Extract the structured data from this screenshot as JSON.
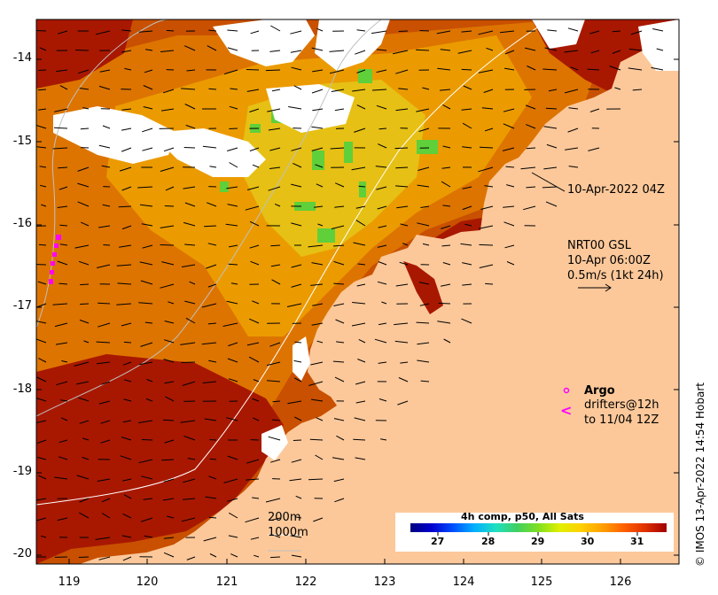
{
  "map": {
    "y_ticks": [
      "-14",
      "-15",
      "-16",
      "-17",
      "-18",
      "-19",
      "-20"
    ],
    "x_ticks": [
      "119",
      "120",
      "121",
      "122",
      "123",
      "124",
      "125",
      "126"
    ],
    "colors": {
      "ocean_hot": "#a81800",
      "ocean_warm": "#d65a00",
      "ocean_mid": "#eea000",
      "ocean_cool": "#e7d21e",
      "ocean_green": "#5fcf3a",
      "land": "#fcc89a",
      "cloud": "#ffffff",
      "argo": "#ff00ff"
    }
  },
  "annotations": {
    "sst_time": "10-Apr-2022 04Z",
    "current_model": "NRT00 GSL",
    "current_time": "10-Apr 06:00Z",
    "current_scale": "0.5m/s (1kt 24h)",
    "argo_label": "Argo",
    "drifters_line1": "drifters@12h",
    "drifters_line2": "to 11/04 12Z",
    "isobath_200": "200m",
    "isobath_1000": "1000m"
  },
  "colorbar": {
    "title": "4h comp, p50, All Sats",
    "ticks": [
      "27",
      "28",
      "29",
      "30",
      "31"
    ],
    "stops": [
      "#00007f",
      "#0000d0",
      "#0050ff",
      "#00b0ff",
      "#20e0c0",
      "#40d060",
      "#80e020",
      "#e0f000",
      "#ffd000",
      "#ffa000",
      "#ff6000",
      "#e03000",
      "#a00000"
    ]
  },
  "credit": "© IMOS 13-Apr-2022 14:54 Hobart"
}
